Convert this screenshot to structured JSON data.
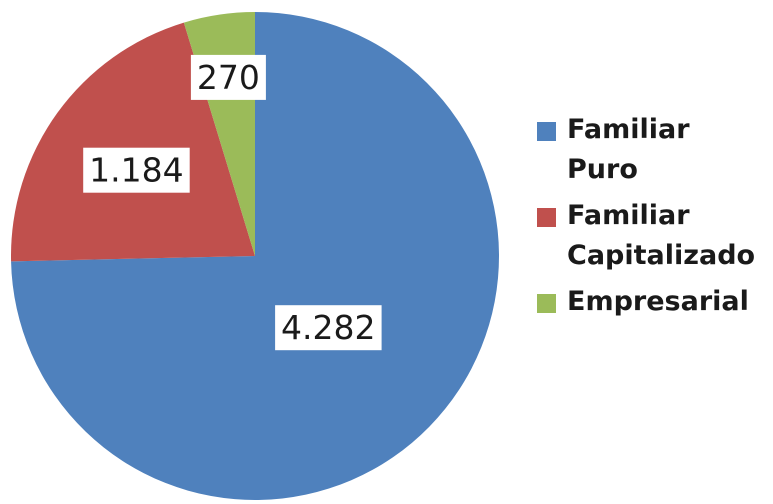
{
  "chart_data": {
    "type": "pie",
    "start_angle_deg": 0,
    "direction": "clockwise",
    "slices": [
      {
        "name": "Familiar Puro",
        "legend_label": "Familiar\nPuro",
        "value": 4282,
        "label": "4.282",
        "color": "#4f81bd"
      },
      {
        "name": "Familiar Capitalizado",
        "legend_label": "Familiar\nCapitalizado",
        "value": 1184,
        "label": "1.184",
        "color": "#c0504d"
      },
      {
        "name": "Empresarial",
        "legend_label": "Empresarial",
        "value": 270,
        "label": "270",
        "color": "#9bbb59"
      }
    ],
    "legend_position": "right"
  }
}
